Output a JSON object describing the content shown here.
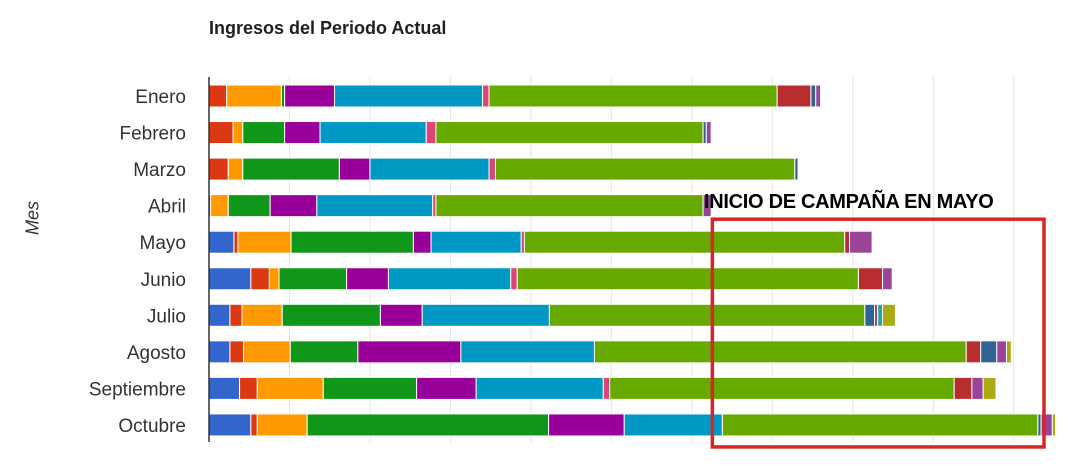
{
  "chart_data": {
    "type": "bar",
    "orientation": "horizontal",
    "stacked": true,
    "title": "Ingresos del Periodo Actual",
    "xlabel": "",
    "ylabel": "Mes",
    "xlim": [
      0,
      53
    ],
    "grid": true,
    "legend": "none",
    "categories": [
      "Enero",
      "Febrero",
      "Marzo",
      "Abril",
      "Mayo",
      "Junio",
      "Julio",
      "Agosto",
      "Septiembre",
      "Octubre"
    ],
    "series": [
      {
        "color": "#3366cc",
        "values": [
          0.0,
          0.0,
          0.0,
          0.0,
          1.55,
          2.6,
          1.3,
          1.3,
          1.9,
          2.6
        ]
      },
      {
        "color": "#dc3912",
        "values": [
          1.1,
          1.5,
          1.2,
          0.1,
          0.25,
          1.15,
          0.75,
          0.85,
          1.1,
          0.4
        ]
      },
      {
        "color": "#ff9900",
        "values": [
          3.4,
          0.6,
          0.9,
          1.1,
          3.3,
          0.6,
          2.5,
          2.9,
          4.1,
          3.1
        ]
      },
      {
        "color": "#109618",
        "values": [
          0.2,
          2.6,
          6.0,
          2.6,
          7.6,
          4.2,
          6.1,
          4.2,
          5.8,
          15.0
        ]
      },
      {
        "color": "#990099",
        "values": [
          3.1,
          2.2,
          1.9,
          2.9,
          1.1,
          2.6,
          2.6,
          6.4,
          3.7,
          4.7
        ]
      },
      {
        "color": "#0099c6",
        "values": [
          9.2,
          6.6,
          7.4,
          7.2,
          5.6,
          7.6,
          7.9,
          8.3,
          7.9,
          6.1
        ]
      },
      {
        "color": "#dd4477",
        "values": [
          0.4,
          0.6,
          0.4,
          0.2,
          0.2,
          0.4,
          0.0,
          0.0,
          0.4,
          0.0
        ]
      },
      {
        "color": "#66aa00",
        "values": [
          17.9,
          16.6,
          18.6,
          16.6,
          19.9,
          21.2,
          19.6,
          23.1,
          21.4,
          19.6
        ]
      },
      {
        "color": "#b82e2e",
        "values": [
          2.1,
          0.0,
          0.0,
          0.0,
          0.3,
          1.5,
          0.0,
          0.9,
          1.1,
          0.0
        ]
      },
      {
        "color": "#316395",
        "values": [
          0.3,
          0.2,
          0.2,
          0.0,
          0.0,
          0.0,
          0.6,
          1.0,
          0.0,
          0.2
        ]
      },
      {
        "color": "#994499",
        "values": [
          0.3,
          0.3,
          0.0,
          0.5,
          1.4,
          0.6,
          0.2,
          0.6,
          0.7,
          0.7
        ]
      },
      {
        "color": "#22aa99",
        "values": [
          0.0,
          0.0,
          0.0,
          0.0,
          0.0,
          0.0,
          0.3,
          0.0,
          0.0,
          0.0
        ]
      },
      {
        "color": "#aaaa11",
        "values": [
          0.0,
          0.0,
          0.0,
          0.0,
          0.0,
          0.0,
          0.8,
          0.3,
          0.8,
          0.2
        ]
      }
    ],
    "annotations": [
      {
        "text": "INICIO DE CAMPAÑA EN MAYO",
        "from_category": "Mayo",
        "to_category": "Octubre",
        "x_range": [
          31.4,
          53
        ],
        "color": "#d62728"
      }
    ]
  }
}
